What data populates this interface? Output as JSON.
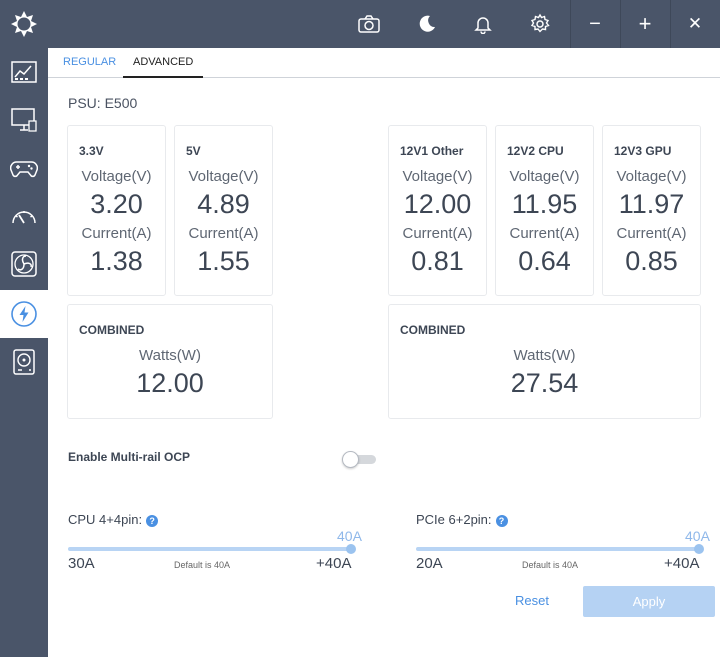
{
  "window": {
    "controls": {
      "minimize": "−",
      "maximize": "+",
      "close": "✕"
    }
  },
  "tabs": [
    {
      "label": "REGULAR",
      "active": false
    },
    {
      "label": "ADVANCED",
      "active": true
    }
  ],
  "psu": {
    "title": "PSU: E500"
  },
  "rails": [
    {
      "name": "3.3V",
      "voltage_label": "Voltage(V)",
      "voltage": "3.20",
      "current_label": "Current(A)",
      "current": "1.38"
    },
    {
      "name": "5V",
      "voltage_label": "Voltage(V)",
      "voltage": "4.89",
      "current_label": "Current(A)",
      "current": "1.55"
    },
    {
      "name": "12V1 Other",
      "voltage_label": "Voltage(V)",
      "voltage": "12.00",
      "current_label": "Current(A)",
      "current": "0.81"
    },
    {
      "name": "12V2 CPU",
      "voltage_label": "Voltage(V)",
      "voltage": "11.95",
      "current_label": "Current(A)",
      "current": "0.64"
    },
    {
      "name": "12V3 GPU",
      "voltage_label": "Voltage(V)",
      "voltage": "11.97",
      "current_label": "Current(A)",
      "current": "0.85"
    }
  ],
  "combined": [
    {
      "name": "COMBINED",
      "watts_label": "Watts(W)",
      "watts": "12.00"
    },
    {
      "name": "COMBINED",
      "watts_label": "Watts(W)",
      "watts": "27.54"
    }
  ],
  "ocp": {
    "label": "Enable Multi-rail OCP",
    "enabled": false
  },
  "sliders": [
    {
      "label": "CPU 4+4pin:",
      "help": "?",
      "value": "40A",
      "level": 1.0,
      "min": "30A",
      "max": "+40A",
      "default_text": "Default is 40A"
    },
    {
      "label": "PCIe 6+2pin:",
      "help": "?",
      "value": "40A",
      "level": 1.0,
      "min": "20A",
      "max": "+40A",
      "default_text": "Default is 40A"
    }
  ],
  "actions": {
    "reset": "Reset",
    "apply": "Apply"
  },
  "colors": {
    "sidebar": "#4a5569",
    "accent": "#4a90e2",
    "apply_disabled": "#b5d2f3",
    "slider_track": "#b8d4f4"
  }
}
